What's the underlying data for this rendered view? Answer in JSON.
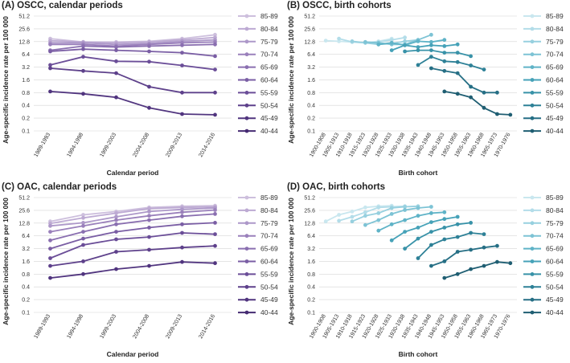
{
  "chart_data": [
    {
      "id": "a",
      "type": "line",
      "title": "(A) OSCC, calendar periods",
      "xlabel": "Calendar period",
      "ylabel": "Age-specific incidence rate per 100 000",
      "yscale": "log2",
      "yticks": [
        "51.2",
        "25.6",
        "12.8",
        "6.4",
        "3.2",
        "1.6",
        "0.8",
        "0.4",
        "0.2",
        "0.1"
      ],
      "categories": [
        "1989-1993",
        "1994-1998",
        "1999-2003",
        "2004-2008",
        "2009-2013",
        "2014-2016"
      ],
      "grid": true,
      "legend": "right",
      "series": [
        {
          "name": "85-89",
          "color": "#cdbfdd",
          "values": [
            15.0,
            12.5,
            12.5,
            13.0,
            15.0,
            18.5
          ]
        },
        {
          "name": "80-84",
          "color": "#bdaad3",
          "values": [
            13.5,
            12.5,
            12.0,
            12.5,
            14.0,
            16.0
          ]
        },
        {
          "name": "75-79",
          "color": "#ad98c9",
          "values": [
            12.0,
            12.0,
            11.0,
            11.5,
            13.0,
            14.0
          ]
        },
        {
          "name": "70-74",
          "color": "#9a80bb",
          "values": [
            11.0,
            11.0,
            10.0,
            11.0,
            12.0,
            12.5
          ]
        },
        {
          "name": "65-69",
          "color": "#8a6fb0",
          "values": [
            8.0,
            10.0,
            9.5,
            10.0,
            10.5,
            11.0
          ]
        },
        {
          "name": "60-64",
          "color": "#7a5ea4",
          "values": [
            7.5,
            8.5,
            8.0,
            7.5,
            7.0,
            5.8
          ]
        },
        {
          "name": "55-59",
          "color": "#6b4e98",
          "values": [
            3.6,
            5.6,
            4.4,
            4.3,
            3.5,
            2.8
          ]
        },
        {
          "name": "50-54",
          "color": "#5e418b",
          "values": [
            3.0,
            2.6,
            2.3,
            1.1,
            0.8,
            0.8
          ]
        },
        {
          "name": "45-49",
          "color": "#51357f",
          "values": [
            0.85,
            0.75,
            0.62,
            0.35,
            0.25,
            0.24
          ]
        },
        {
          "name": "40-44",
          "color": "#452b72",
          "values": [
            null,
            null,
            null,
            null,
            null,
            null
          ]
        }
      ]
    },
    {
      "id": "b",
      "type": "line",
      "title": "(B) OSCC, birth cohorts",
      "xlabel": "Birth cohort",
      "ylabel": "Age-specific incidence rate per 100 000",
      "yscale": "log2",
      "yticks": [
        "51.2",
        "25.6",
        "12.8",
        "6.4",
        "3.2",
        "1.6",
        "0.8",
        "0.4",
        "0.2",
        "0.1"
      ],
      "categories": [
        "1900-1908",
        "1905-1913",
        "1910-1918",
        "1915-1923",
        "1920-1928",
        "1925-1933",
        "1930-1938",
        "1935-1943",
        "1940-1948",
        "1945-1953",
        "1950-1958",
        "1955-1963",
        "1960-1968",
        "1965-1973",
        "1970-1976"
      ],
      "grid": true,
      "legend": "right",
      "series": [
        {
          "name": "85-89",
          "color": "#c9e7ef",
          "values": [
            13.5,
            13.0,
            12.5,
            12.0,
            13.0,
            15.0,
            null,
            null,
            null,
            null,
            null,
            null,
            null,
            null,
            null
          ]
        },
        {
          "name": "80-84",
          "color": "#b3dde9",
          "values": [
            null,
            15.0,
            12.5,
            12.0,
            12.5,
            14.0,
            16.0,
            null,
            null,
            null,
            null,
            null,
            null,
            null,
            null
          ]
        },
        {
          "name": "75-79",
          "color": "#97d0df",
          "values": [
            null,
            null,
            13.0,
            12.0,
            11.0,
            11.5,
            13.0,
            14.0,
            null,
            null,
            null,
            null,
            null,
            null,
            null
          ]
        },
        {
          "name": "70-74",
          "color": "#7dc3d5",
          "values": [
            null,
            null,
            null,
            12.5,
            12.0,
            11.0,
            11.0,
            14.0,
            18.5,
            null,
            null,
            null,
            null,
            null,
            null
          ]
        },
        {
          "name": "65-69",
          "color": "#5fb3c7",
          "values": [
            null,
            null,
            null,
            null,
            11.0,
            12.0,
            10.5,
            13.0,
            12.5,
            14.0,
            null,
            null,
            null,
            null,
            null
          ]
        },
        {
          "name": "60-64",
          "color": "#46a2b8",
          "values": [
            null,
            null,
            null,
            null,
            null,
            8.0,
            10.5,
            9.5,
            10.5,
            10.0,
            11.0,
            null,
            null,
            null,
            null
          ]
        },
        {
          "name": "55-59",
          "color": "#3892a8",
          "values": [
            null,
            null,
            null,
            null,
            null,
            null,
            7.5,
            8.0,
            8.0,
            7.0,
            7.0,
            5.8,
            null,
            null,
            null
          ]
        },
        {
          "name": "50-54",
          "color": "#2e8197",
          "values": [
            null,
            null,
            null,
            null,
            null,
            null,
            null,
            3.6,
            5.6,
            4.4,
            4.2,
            3.5,
            2.8,
            null,
            null
          ]
        },
        {
          "name": "45-49",
          "color": "#266f85",
          "values": [
            null,
            null,
            null,
            null,
            null,
            null,
            null,
            null,
            3.0,
            2.6,
            2.3,
            1.1,
            0.8,
            0.8,
            null
          ]
        },
        {
          "name": "40-44",
          "color": "#1f5e72",
          "values": [
            null,
            null,
            null,
            null,
            null,
            null,
            null,
            null,
            null,
            0.85,
            0.75,
            0.62,
            0.35,
            0.25,
            0.24
          ]
        }
      ]
    },
    {
      "id": "c",
      "type": "line",
      "title": "(C) OAC, calendar periods",
      "xlabel": "Calendar period",
      "ylabel": "Age-specific incidence rate per 100 000",
      "yscale": "log2",
      "yticks": [
        "51.2",
        "25.6",
        "12.8",
        "6.4",
        "3.2",
        "1.6",
        "0.8",
        "0.4",
        "0.2",
        "0.1"
      ],
      "categories": [
        "1989-1993",
        "1994-1998",
        "1999-2003",
        "2004-2008",
        "2009-2013",
        "2014-2016"
      ],
      "grid": true,
      "legend": "right",
      "series": [
        {
          "name": "85-89",
          "color": "#cdbfdd",
          "values": [
            14.0,
            20.0,
            24.0,
            30.0,
            32.0,
            33.0
          ]
        },
        {
          "name": "80-84",
          "color": "#bdaad3",
          "values": [
            12.5,
            17.0,
            22.0,
            28.0,
            30.0,
            31.0
          ]
        },
        {
          "name": "75-79",
          "color": "#ad98c9",
          "values": [
            11.0,
            13.0,
            18.0,
            24.0,
            27.0,
            29.0
          ]
        },
        {
          "name": "70-74",
          "color": "#9a80bb",
          "values": [
            8.0,
            11.0,
            15.0,
            19.0,
            23.0,
            26.0
          ]
        },
        {
          "name": "65-69",
          "color": "#8a6fb0",
          "values": [
            5.0,
            8.0,
            12.0,
            15.0,
            18.5,
            21.0
          ]
        },
        {
          "name": "60-64",
          "color": "#7a5ea4",
          "values": [
            3.2,
            5.5,
            8.0,
            10.0,
            12.0,
            13.0
          ]
        },
        {
          "name": "55-59",
          "color": "#6b4e98",
          "values": [
            1.9,
            3.9,
            5.3,
            6.0,
            7.5,
            7.0
          ]
        },
        {
          "name": "50-54",
          "color": "#5e418b",
          "values": [
            1.25,
            1.6,
            2.7,
            3.0,
            3.4,
            3.7
          ]
        },
        {
          "name": "45-49",
          "color": "#51357f",
          "values": [
            0.65,
            0.8,
            1.05,
            1.25,
            1.55,
            1.45
          ]
        },
        {
          "name": "40-44",
          "color": "#452b72",
          "values": [
            null,
            null,
            null,
            null,
            null,
            null
          ]
        }
      ]
    },
    {
      "id": "d",
      "type": "line",
      "title": "(D) OAC, birth cohorts",
      "xlabel": "Birth cohort",
      "ylabel": "Age-specific incidence rate per 100 000",
      "yscale": "log2",
      "yticks": [
        "51.2",
        "25.6",
        "12.8",
        "6.4",
        "3.2",
        "1.6",
        "0.8",
        "0.4",
        "0.2",
        "0.1"
      ],
      "categories": [
        "1900-1908",
        "1905-1913",
        "1910-1918",
        "1915-1923",
        "1920-1928",
        "1925-1933",
        "1930-1938",
        "1935-1943",
        "1940-1948",
        "1945-1953",
        "1950-1958",
        "1955-1963",
        "1960-1968",
        "1965-1973",
        "1970-1976"
      ],
      "grid": true,
      "legend": "right",
      "series": [
        {
          "name": "85-89",
          "color": "#c9e7ef",
          "values": [
            14.0,
            20.0,
            24.0,
            30.0,
            32.0,
            33.0,
            null,
            null,
            null,
            null,
            null,
            null,
            null,
            null,
            null
          ]
        },
        {
          "name": "80-84",
          "color": "#b3dde9",
          "values": [
            null,
            14.5,
            18.0,
            23.0,
            30.0,
            31.0,
            32.0,
            null,
            null,
            null,
            null,
            null,
            null,
            null,
            null
          ]
        },
        {
          "name": "75-79",
          "color": "#97d0df",
          "values": [
            null,
            null,
            14.0,
            19.0,
            22.0,
            29.0,
            31.0,
            32.0,
            null,
            null,
            null,
            null,
            null,
            null,
            null
          ]
        },
        {
          "name": "70-74",
          "color": "#7dc3d5",
          "values": [
            null,
            null,
            null,
            11.5,
            15.0,
            21.0,
            26.0,
            29.0,
            31.0,
            null,
            null,
            null,
            null,
            null,
            null
          ]
        },
        {
          "name": "65-69",
          "color": "#5fb3c7",
          "values": [
            null,
            null,
            null,
            null,
            8.5,
            12.0,
            15.0,
            19.0,
            22.0,
            23.0,
            null,
            null,
            null,
            null,
            null
          ]
        },
        {
          "name": "60-64",
          "color": "#46a2b8",
          "values": [
            null,
            null,
            null,
            null,
            null,
            5.0,
            8.0,
            10.0,
            13.5,
            16.0,
            18.0,
            null,
            null,
            null,
            null
          ]
        },
        {
          "name": "55-59",
          "color": "#3892a8",
          "values": [
            null,
            null,
            null,
            null,
            null,
            null,
            3.2,
            5.5,
            8.0,
            10.0,
            12.0,
            13.0,
            null,
            null,
            null
          ]
        },
        {
          "name": "50-54",
          "color": "#2e8197",
          "values": [
            null,
            null,
            null,
            null,
            null,
            null,
            null,
            1.9,
            3.9,
            5.3,
            6.0,
            7.5,
            7.0,
            null,
            null
          ]
        },
        {
          "name": "45-49",
          "color": "#266f85",
          "values": [
            null,
            null,
            null,
            null,
            null,
            null,
            null,
            null,
            1.25,
            1.6,
            2.7,
            3.0,
            3.4,
            3.7,
            null
          ]
        },
        {
          "name": "40-44",
          "color": "#1f5e72",
          "values": [
            null,
            null,
            null,
            null,
            null,
            null,
            null,
            null,
            null,
            0.65,
            0.8,
            1.05,
            1.25,
            1.55,
            1.45
          ]
        }
      ]
    }
  ]
}
